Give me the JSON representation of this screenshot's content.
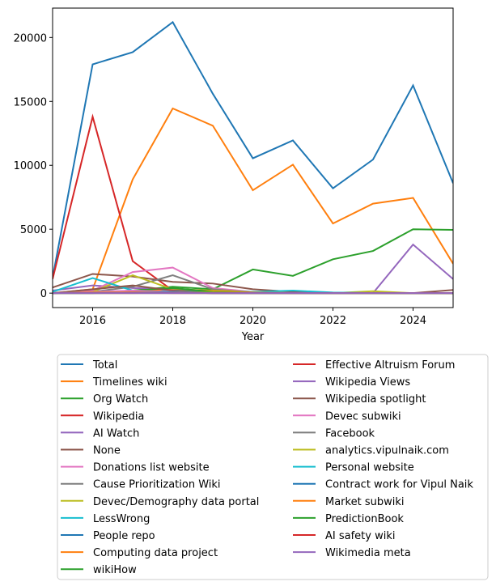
{
  "chart_data": {
    "type": "line",
    "title": "",
    "xlabel": "Year",
    "ylabel": "",
    "xlim": [
      2015,
      2025
    ],
    "ylim": [
      -1130,
      22300
    ],
    "grid": false,
    "legend_placement": "below",
    "x": [
      2015,
      2016,
      2017,
      2018,
      2019,
      2020,
      2021,
      2022,
      2023,
      2024,
      2025
    ],
    "xticks": [
      2016,
      2018,
      2020,
      2022,
      2024
    ],
    "yticks": [
      0,
      5000,
      10000,
      15000,
      20000
    ],
    "series": [
      {
        "name": "Total",
        "color": "#1f77b4",
        "values": [
          1200,
          17900,
          18850,
          21200,
          15600,
          10550,
          11950,
          8200,
          10450,
          16250,
          8600
        ]
      },
      {
        "name": "Timelines wiki",
        "color": "#ff7f0e",
        "values": [
          0,
          300,
          8900,
          14450,
          13100,
          8050,
          10050,
          5450,
          7000,
          7450,
          2300
        ]
      },
      {
        "name": "Org Watch",
        "color": "#2ca02c",
        "values": [
          0,
          0,
          200,
          500,
          300,
          1850,
          1350,
          2650,
          3300,
          5000,
          4950
        ]
      },
      {
        "name": "Wikipedia",
        "color": "#d62728",
        "values": [
          1100,
          13800,
          2500,
          200,
          150,
          50,
          0,
          0,
          0,
          0,
          0
        ]
      },
      {
        "name": "AI Watch",
        "color": "#9467bd",
        "values": [
          200,
          600,
          400,
          300,
          100,
          50,
          0,
          0,
          0,
          3800,
          1100
        ]
      },
      {
        "name": "None",
        "color": "#8c564b",
        "values": [
          440,
          1500,
          1300,
          880,
          750,
          300,
          100,
          0,
          0,
          0,
          250
        ]
      },
      {
        "name": "Donations list website",
        "color": "#e377c2",
        "values": [
          0,
          200,
          1650,
          2000,
          400,
          100,
          0,
          0,
          0,
          0,
          0
        ]
      },
      {
        "name": "Cause Prioritization Wiki",
        "color": "#7f7f7f",
        "values": [
          0,
          100,
          500,
          1400,
          300,
          50,
          0,
          0,
          0,
          0,
          0
        ]
      },
      {
        "name": "Devec/Demography data portal",
        "color": "#bcbd22",
        "values": [
          0,
          100,
          1400,
          300,
          200,
          100,
          0,
          0,
          150,
          0,
          0
        ]
      },
      {
        "name": "LessWrong",
        "color": "#17becf",
        "values": [
          100,
          1180,
          200,
          250,
          100,
          100,
          200,
          50,
          0,
          0,
          0
        ]
      },
      {
        "name": "People repo",
        "color": "#1f77b4",
        "values": [
          0,
          50,
          100,
          100,
          50,
          50,
          0,
          0,
          0,
          0,
          0
        ]
      },
      {
        "name": "Computing data project",
        "color": "#ff7f0e",
        "values": [
          0,
          50,
          100,
          350,
          150,
          50,
          0,
          0,
          0,
          0,
          0
        ]
      },
      {
        "name": "wikiHow",
        "color": "#2ca02c",
        "values": [
          0,
          50,
          200,
          400,
          100,
          0,
          0,
          0,
          0,
          0,
          0
        ]
      },
      {
        "name": "Effective Altruism Forum",
        "color": "#d62728",
        "values": [
          0,
          100,
          100,
          50,
          0,
          0,
          0,
          0,
          0,
          0,
          0
        ]
      },
      {
        "name": "Wikipedia Views",
        "color": "#9467bd",
        "values": [
          0,
          50,
          50,
          50,
          0,
          0,
          0,
          0,
          0,
          0,
          0
        ]
      },
      {
        "name": "Wikipedia spotlight",
        "color": "#8c564b",
        "values": [
          0,
          300,
          600,
          200,
          0,
          0,
          0,
          0,
          0,
          0,
          0
        ]
      },
      {
        "name": "Devec subwiki",
        "color": "#e377c2",
        "values": [
          0,
          100,
          200,
          100,
          0,
          0,
          0,
          0,
          0,
          0,
          0
        ]
      },
      {
        "name": "Facebook",
        "color": "#7f7f7f",
        "values": [
          0,
          50,
          50,
          50,
          0,
          0,
          0,
          0,
          0,
          0,
          0
        ]
      },
      {
        "name": "analytics.vipulnaik.com",
        "color": "#bcbd22",
        "values": [
          0,
          0,
          0,
          50,
          50,
          0,
          0,
          0,
          0,
          0,
          0
        ]
      },
      {
        "name": "Personal website",
        "color": "#17becf",
        "values": [
          0,
          50,
          50,
          50,
          0,
          0,
          0,
          0,
          0,
          0,
          0
        ]
      },
      {
        "name": "Contract work for Vipul Naik",
        "color": "#1f77b4",
        "values": [
          0,
          0,
          50,
          50,
          0,
          0,
          0,
          0,
          0,
          0,
          0
        ]
      },
      {
        "name": "Market subwiki",
        "color": "#ff7f0e",
        "values": [
          0,
          50,
          50,
          0,
          0,
          0,
          0,
          0,
          0,
          0,
          0
        ]
      },
      {
        "name": "PredictionBook",
        "color": "#2ca02c",
        "values": [
          0,
          0,
          0,
          0,
          0,
          0,
          0,
          0,
          0,
          0,
          0
        ]
      },
      {
        "name": "AI safety wiki",
        "color": "#d62728",
        "values": [
          0,
          0,
          0,
          0,
          0,
          0,
          0,
          0,
          0,
          0,
          0
        ]
      },
      {
        "name": "Wikimedia meta",
        "color": "#9467bd",
        "values": [
          0,
          0,
          0,
          0,
          0,
          0,
          0,
          0,
          0,
          0,
          0
        ]
      }
    ]
  }
}
